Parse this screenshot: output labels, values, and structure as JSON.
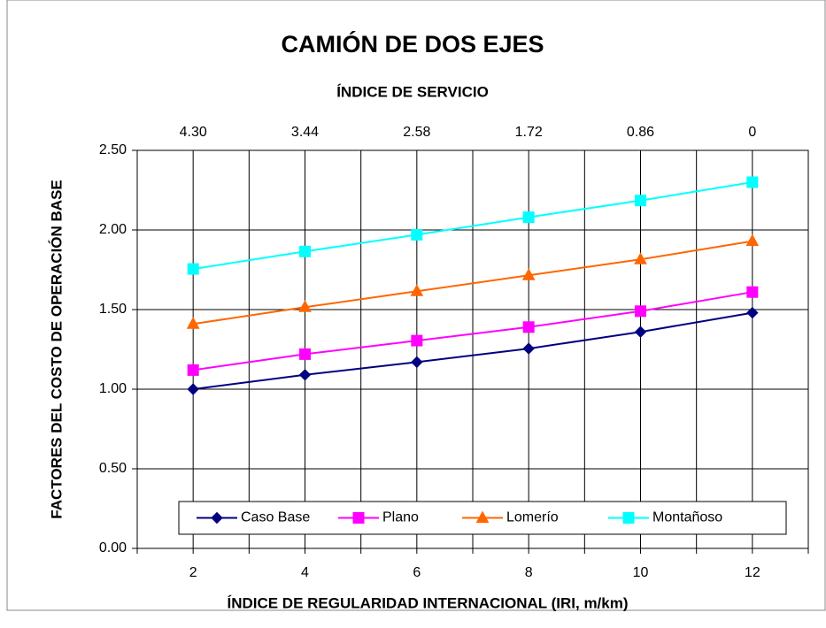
{
  "chart_data": {
    "type": "line",
    "title": "CAMIÓN DE DOS EJES",
    "x2_label": "ÍNDICE DE SERVICIO",
    "ylabel": "FACTORES DEL COSTO DE OPERACIÓN BASE",
    "xlabel": "ÍNDICE DE REGULARIDAD INTERNACIONAL (IRI, m/km)",
    "x": [
      2,
      4,
      6,
      8,
      10,
      12
    ],
    "series": [
      {
        "name": "Caso Base",
        "color": "#000080",
        "marker": "diamond",
        "values": [
          1.0,
          1.09,
          1.17,
          1.255,
          1.36,
          1.48
        ]
      },
      {
        "name": "Plano",
        "color": "#ff00ff",
        "marker": "square",
        "values": [
          1.12,
          1.22,
          1.305,
          1.39,
          1.49,
          1.61
        ]
      },
      {
        "name": "Lomerío",
        "color": "#ff6600",
        "marker": "triangle",
        "values": [
          1.41,
          1.515,
          1.615,
          1.715,
          1.815,
          1.93
        ]
      },
      {
        "name": "Montañoso",
        "color": "#00ffff",
        "marker": "square",
        "values": [
          1.755,
          1.865,
          1.97,
          2.08,
          2.185,
          2.3
        ]
      }
    ],
    "xlim": [
      1,
      13
    ],
    "xticks": [
      2,
      4,
      6,
      8,
      10,
      12
    ],
    "xminorticks": [
      1,
      3,
      5,
      7,
      9,
      11,
      13
    ],
    "x2ticks": [
      {
        "value": 2,
        "label": "4.30"
      },
      {
        "value": 4,
        "label": "3.44"
      },
      {
        "value": 6,
        "label": "2.58"
      },
      {
        "value": 8,
        "label": "1.72"
      },
      {
        "value": 10,
        "label": "0.86"
      },
      {
        "value": 12,
        "label": "0"
      }
    ],
    "ylim": [
      0,
      2.5
    ],
    "yticks": [
      {
        "value": 0,
        "label": "0.00"
      },
      {
        "value": 0.5,
        "label": "0.50"
      },
      {
        "value": 1,
        "label": "1.00"
      },
      {
        "value": 1.5,
        "label": "1.50"
      },
      {
        "value": 2,
        "label": "2.00"
      },
      {
        "value": 2.5,
        "label": "2.50"
      }
    ],
    "grid": true,
    "legend": "bottom"
  }
}
